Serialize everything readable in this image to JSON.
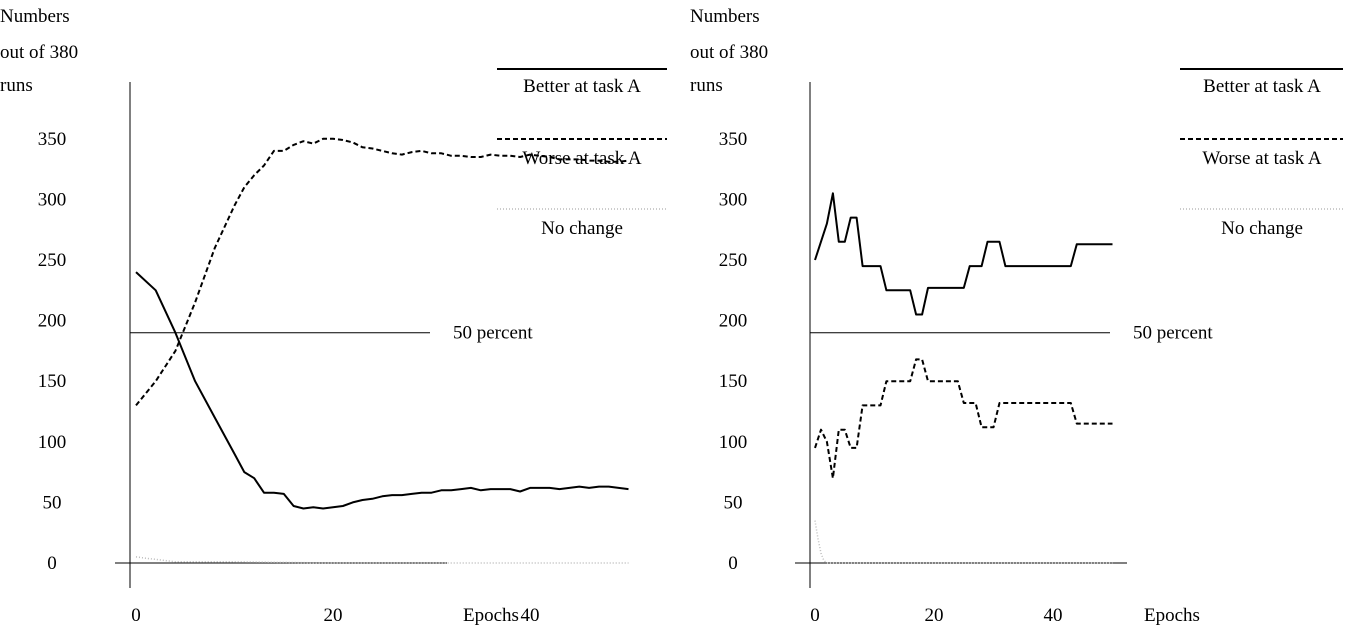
{
  "chart_data": [
    {
      "type": "line",
      "ylabel_lines": [
        "Numbers",
        "out of 380",
        "runs"
      ],
      "xlabel": "Epochs",
      "xlim": [
        0,
        50
      ],
      "ylim": [
        0,
        380
      ],
      "x_ticks": [
        0,
        20,
        40
      ],
      "y_ticks": [
        0,
        50,
        100,
        150,
        200,
        250,
        300,
        350
      ],
      "reference_line": {
        "value": 190,
        "label": "50 percent"
      },
      "legend_position": "right",
      "series": [
        {
          "name": "Better at task A",
          "style": "solid",
          "color": "#000000",
          "x": [
            0,
            2,
            4,
            6,
            8,
            10,
            11,
            12,
            13,
            14,
            15,
            16,
            17,
            18,
            19,
            20,
            21,
            22,
            23,
            24,
            25,
            26,
            27,
            28,
            29,
            30,
            31,
            32,
            33,
            34,
            35,
            36,
            37,
            38,
            39,
            40,
            41,
            42,
            43,
            44,
            45,
            46,
            47,
            48,
            49,
            50
          ],
          "y": [
            240,
            225,
            190,
            150,
            120,
            90,
            75,
            70,
            58,
            58,
            57,
            47,
            45,
            46,
            45,
            46,
            47,
            50,
            52,
            53,
            55,
            56,
            56,
            57,
            58,
            58,
            60,
            60,
            61,
            62,
            60,
            61,
            61,
            61,
            59,
            62,
            62,
            62,
            61,
            62,
            63,
            62,
            63,
            63,
            62,
            61
          ]
        },
        {
          "name": "Worse at task A",
          "style": "dashed",
          "color": "#000000",
          "x": [
            0,
            2,
            4,
            6,
            8,
            10,
            11,
            12,
            13,
            14,
            15,
            16,
            17,
            18,
            19,
            20,
            21,
            22,
            23,
            24,
            25,
            26,
            27,
            28,
            29,
            30,
            31,
            32,
            33,
            34,
            35,
            36,
            37,
            38,
            39,
            40,
            41,
            42,
            43,
            44,
            45,
            46,
            47,
            48,
            49,
            50
          ],
          "y": [
            130,
            150,
            175,
            215,
            260,
            295,
            310,
            320,
            328,
            340,
            340,
            345,
            348,
            346,
            350,
            350,
            349,
            347,
            343,
            342,
            340,
            338,
            337,
            339,
            340,
            338,
            338,
            336,
            336,
            335,
            335,
            337,
            336,
            336,
            335,
            337,
            336,
            335,
            333,
            333,
            333,
            332,
            332,
            331,
            331,
            332
          ]
        },
        {
          "name": "No change",
          "style": "dotted",
          "color": "#bbbbbb",
          "x": [
            0,
            1,
            2,
            3,
            4,
            5,
            10,
            20,
            30,
            40,
            50
          ],
          "y": [
            5,
            4,
            3,
            2,
            1,
            1,
            1,
            0,
            0,
            0,
            0
          ]
        }
      ]
    },
    {
      "type": "line",
      "ylabel_lines": [
        "Numbers",
        "out of 380",
        "runs"
      ],
      "xlabel": "Epochs",
      "xlim": [
        0,
        50
      ],
      "ylim": [
        0,
        380
      ],
      "x_ticks": [
        0,
        20,
        40
      ],
      "y_ticks": [
        0,
        50,
        100,
        150,
        200,
        250,
        300,
        350
      ],
      "reference_line": {
        "value": 190,
        "label": "50 percent"
      },
      "legend_position": "right",
      "series": [
        {
          "name": "Better at task A",
          "style": "solid",
          "color": "#000000",
          "x": [
            0,
            2,
            3,
            4,
            5,
            6,
            7,
            8,
            9,
            10,
            11,
            12,
            13,
            14,
            15,
            16,
            17,
            18,
            19,
            20,
            21,
            22,
            23,
            24,
            25,
            26,
            27,
            28,
            29,
            30,
            31,
            32,
            33,
            34,
            35,
            36,
            37,
            38,
            39,
            40,
            41,
            42,
            43,
            44,
            45,
            46,
            47,
            48,
            49,
            50
          ],
          "y": [
            250,
            280,
            305,
            265,
            265,
            285,
            285,
            245,
            245,
            245,
            245,
            225,
            225,
            225,
            225,
            225,
            205,
            205,
            227,
            227,
            227,
            227,
            227,
            227,
            227,
            245,
            245,
            245,
            265,
            265,
            265,
            245,
            245,
            245,
            245,
            245,
            245,
            245,
            245,
            245,
            245,
            245,
            245,
            263,
            263,
            263,
            263,
            263,
            263,
            263
          ]
        },
        {
          "name": "Worse at task A",
          "style": "dashed",
          "color": "#000000",
          "x": [
            0,
            1,
            2,
            3,
            4,
            5,
            6,
            7,
            8,
            9,
            10,
            11,
            12,
            13,
            14,
            15,
            16,
            17,
            18,
            19,
            20,
            21,
            22,
            23,
            24,
            25,
            26,
            27,
            28,
            29,
            30,
            31,
            32,
            33,
            34,
            35,
            36,
            37,
            38,
            39,
            40,
            41,
            42,
            43,
            44,
            45,
            46,
            47,
            48,
            49,
            50
          ],
          "y": [
            95,
            110,
            100,
            70,
            110,
            110,
            95,
            95,
            130,
            130,
            130,
            130,
            150,
            150,
            150,
            150,
            150,
            168,
            168,
            150,
            150,
            150,
            150,
            150,
            150,
            132,
            132,
            132,
            112,
            112,
            112,
            132,
            132,
            132,
            132,
            132,
            132,
            132,
            132,
            132,
            132,
            132,
            132,
            132,
            115,
            115,
            115,
            115,
            115,
            115,
            115
          ]
        },
        {
          "name": "No change",
          "style": "dotted",
          "color": "#bbbbbb",
          "x": [
            0,
            0.5,
            1,
            1.5,
            2,
            3,
            5,
            10,
            20,
            30,
            40,
            50
          ],
          "y": [
            35,
            20,
            8,
            2,
            0,
            0,
            0,
            0,
            0,
            0,
            0,
            0
          ]
        }
      ]
    }
  ]
}
